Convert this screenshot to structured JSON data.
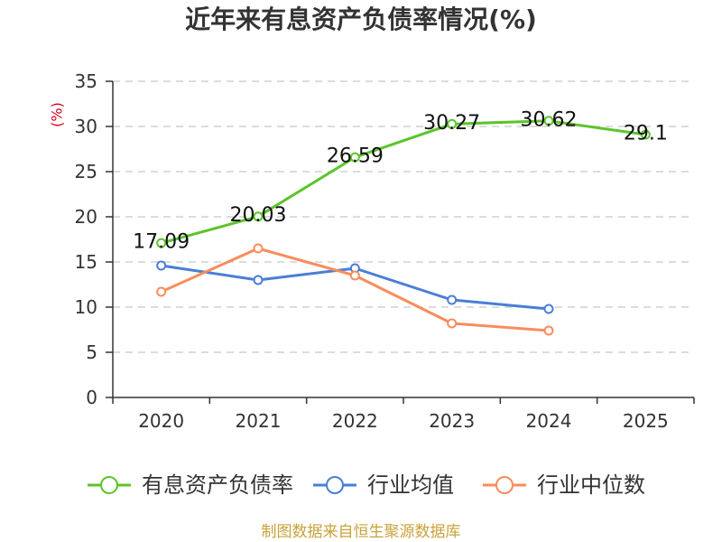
{
  "chart_data": {
    "type": "line",
    "title": "近年来有息资产负债率情况(%)",
    "xlabel": "",
    "ylabel": "(%)",
    "categories": [
      "2020",
      "2021",
      "2022",
      "2023",
      "2024",
      "2025"
    ],
    "ylim": [
      0,
      35
    ],
    "yticks": [
      0,
      5,
      10,
      15,
      20,
      25,
      30,
      35
    ],
    "grid": true,
    "legend_position": "bottom",
    "series": [
      {
        "name": "有息资产负债率",
        "color": "#5cc42b",
        "show_labels": true,
        "values": [
          17.09,
          20.03,
          26.59,
          30.27,
          30.62,
          29.1
        ]
      },
      {
        "name": "行业均值",
        "color": "#4a7ed8",
        "show_labels": false,
        "values": [
          14.6,
          13.0,
          14.3,
          10.8,
          9.8,
          null
        ]
      },
      {
        "name": "行业中位数",
        "color": "#f88d5b",
        "show_labels": false,
        "values": [
          11.7,
          16.5,
          13.5,
          8.2,
          7.4,
          null
        ]
      }
    ]
  },
  "source_note": "制图数据来自恒生聚源数据库",
  "colors": {
    "title": "#333333",
    "axis": "#333333",
    "grid": "#c8c8c8",
    "ylabel": "#d9001b",
    "source_note": "#c9a23a",
    "data_label": "#111111"
  }
}
